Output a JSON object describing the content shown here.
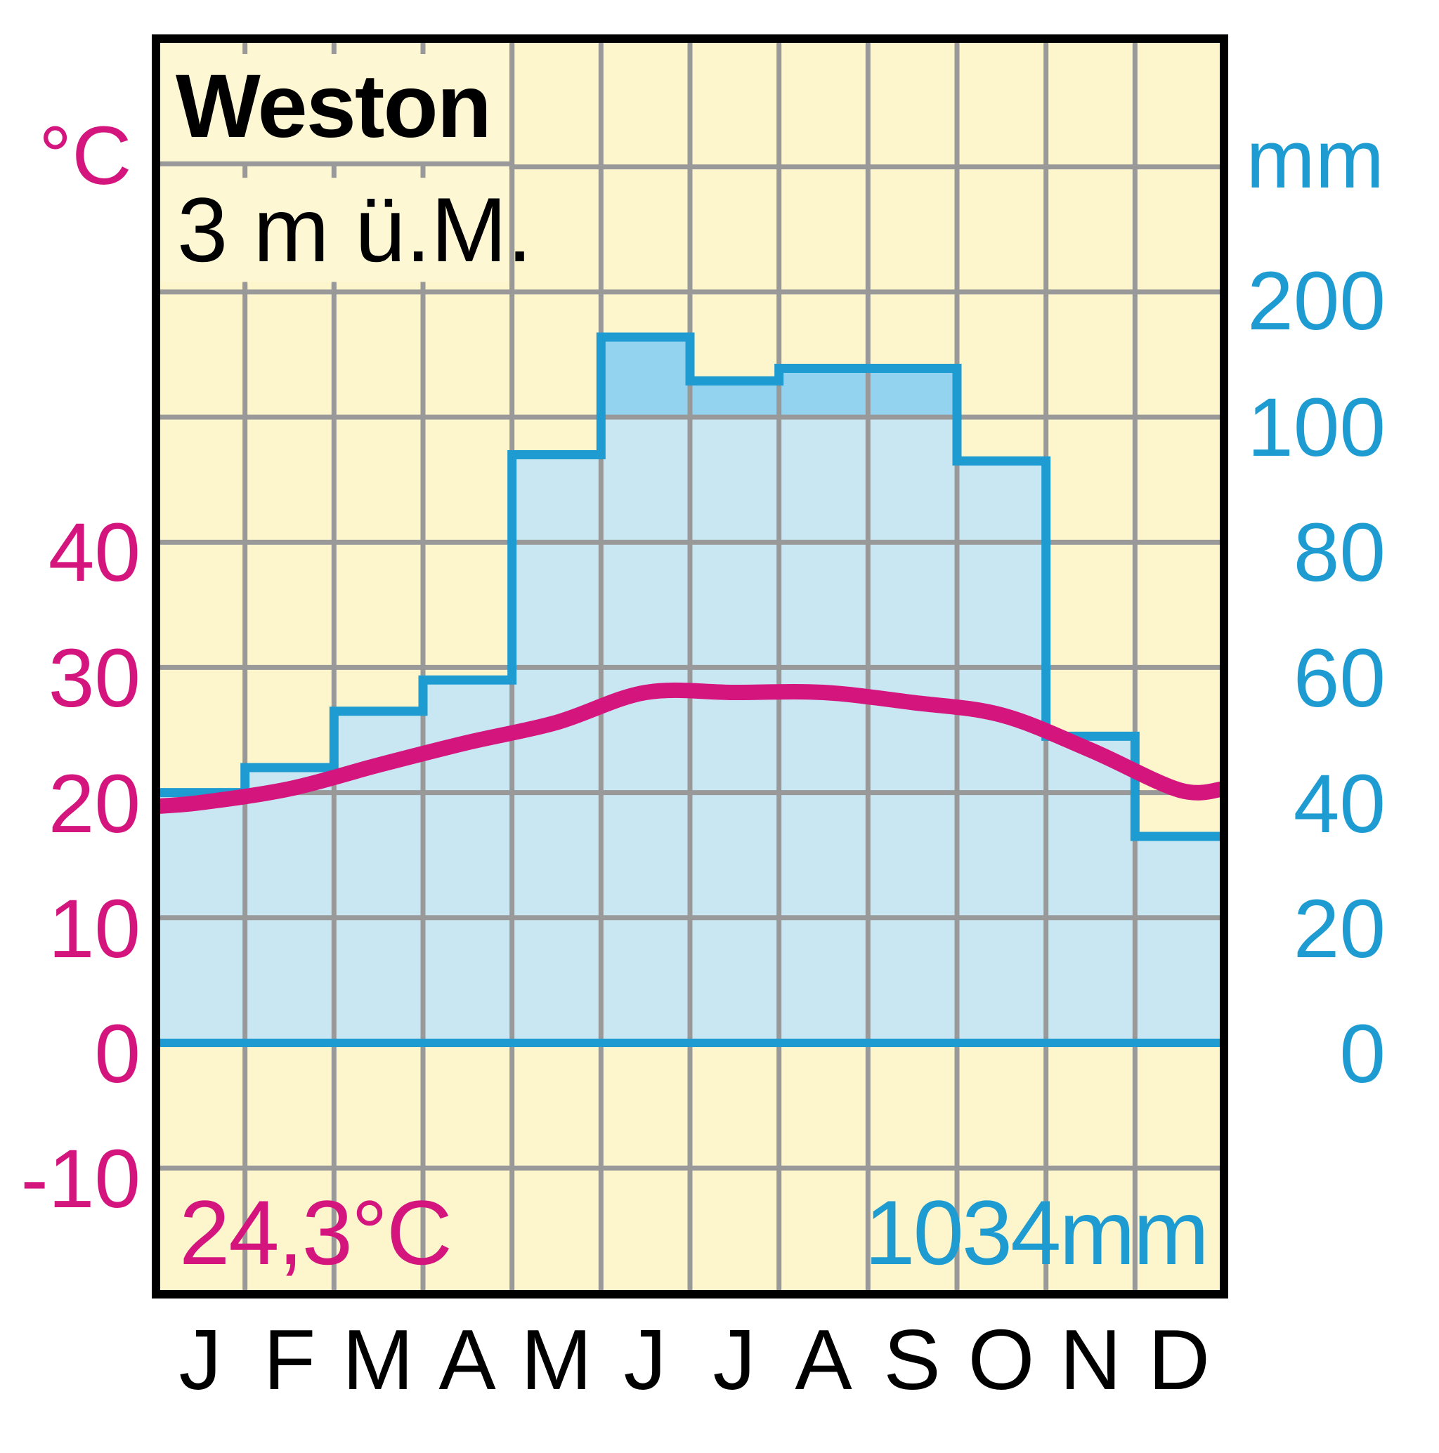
{
  "station": {
    "name": "Weston",
    "elevation": "3 m ü.M.",
    "annual_temperature": "24,3°C",
    "annual_precipitation": "1034mm"
  },
  "axes": {
    "left_unit": "°C",
    "right_unit": "mm",
    "left_ticks": [
      "40",
      "30",
      "20",
      "10",
      "0",
      "-10"
    ],
    "right_ticks": [
      "200",
      "100",
      "80",
      "60",
      "40",
      "20",
      "0"
    ]
  },
  "months": [
    "J",
    "F",
    "M",
    "A",
    "M",
    "J",
    "J",
    "A",
    "S",
    "O",
    "N",
    "D"
  ],
  "colors": {
    "background": "#fdf6cc",
    "title_box": "#fdf7d3",
    "grid": "#999999",
    "precip_fill": "#c9e7f2",
    "precip_fill_above_100": "#93d3f0",
    "precip_line": "#1e9cd2",
    "temp_line": "#d4157e",
    "border": "#000000"
  },
  "chart_data": {
    "type": "climate-diagram (bar + line)",
    "title": "Weston",
    "subtitle": "3 m ü.M.",
    "categories": [
      "J",
      "F",
      "M",
      "A",
      "M",
      "J",
      "J",
      "A",
      "S",
      "O",
      "N",
      "D"
    ],
    "series": [
      {
        "name": "Precipitation (mm)",
        "type": "bar",
        "axis": "right",
        "values": [
          40,
          44,
          53,
          58,
          94,
          164,
          129,
          139,
          139,
          93,
          49,
          33
        ]
      },
      {
        "name": "Temperature (°C)",
        "type": "line",
        "axis": "left",
        "values": [
          19.2,
          20.3,
          22.2,
          24.0,
          25.6,
          28.0,
          28.0,
          28.0,
          27.2,
          26.2,
          23.4,
          20.2
        ]
      }
    ],
    "annual_mean_temperature": "24,3°C",
    "annual_precipitation": "1034mm",
    "ylabel_left": "°C",
    "ylabel_right": "mm",
    "ylim_left": [
      -10,
      40
    ],
    "ylim_right": [
      0,
      200
    ],
    "right_axis_note": "scale compressed above 100 mm (100–200 mm per one grid row)",
    "left_ticks": [
      -10,
      0,
      10,
      20,
      30,
      40
    ],
    "right_ticks": [
      0,
      20,
      40,
      60,
      80,
      100,
      200
    ],
    "grid": true
  }
}
